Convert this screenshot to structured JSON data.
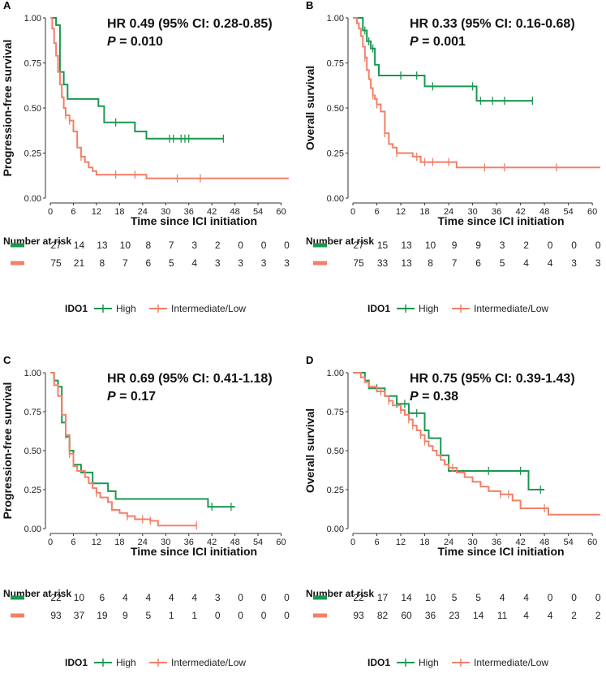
{
  "colors": {
    "high": "#1a9850",
    "low": "#f28068",
    "axis": "#333333"
  },
  "chart_data": [
    {
      "type": "line",
      "panel": "A",
      "ylabel": "Progression-free survival",
      "xlabel": "Time since ICI initiation",
      "xlim": [
        0,
        62
      ],
      "ylim": [
        0,
        1
      ],
      "xticks": [
        0,
        6,
        12,
        18,
        24,
        30,
        36,
        42,
        48,
        54,
        60
      ],
      "yticks": [
        "0.00",
        "0.25",
        "0.50",
        "0.75",
        "1.00"
      ],
      "hr_text": "HR 0.49 (95% CI: 0.28-0.85)",
      "p_letter": "P",
      "p_value": " = 0.010",
      "risk_title": "Number at risk",
      "series": [
        {
          "name": "High",
          "color": "#1a9850",
          "steps": [
            [
              0,
              1.0
            ],
            [
              1.5,
              0.96
            ],
            [
              2.5,
              0.7
            ],
            [
              3.5,
              0.63
            ],
            [
              4.5,
              0.55
            ],
            [
              11,
              0.55
            ],
            [
              12.5,
              0.51
            ],
            [
              14,
              0.42
            ],
            [
              20,
              0.42
            ],
            [
              22,
              0.37
            ],
            [
              25,
              0.33
            ],
            [
              45,
              0.33
            ]
          ],
          "censors": [
            [
              17,
              0.42
            ],
            [
              31,
              0.33
            ],
            [
              32,
              0.33
            ],
            [
              34,
              0.33
            ],
            [
              35,
              0.33
            ],
            [
              36,
              0.33
            ],
            [
              45,
              0.33
            ]
          ],
          "risk": [
            27,
            14,
            13,
            10,
            8,
            7,
            3,
            2,
            0,
            0,
            0
          ]
        },
        {
          "name": "Intermediate/Low",
          "color": "#f28068",
          "steps": [
            [
              0,
              1.0
            ],
            [
              0.5,
              0.94
            ],
            [
              1,
              0.86
            ],
            [
              1.5,
              0.79
            ],
            [
              2,
              0.7
            ],
            [
              2.5,
              0.63
            ],
            [
              3,
              0.56
            ],
            [
              3.5,
              0.5
            ],
            [
              4,
              0.46
            ],
            [
              5,
              0.43
            ],
            [
              6,
              0.37
            ],
            [
              7,
              0.28
            ],
            [
              8,
              0.23
            ],
            [
              9,
              0.2
            ],
            [
              10,
              0.17
            ],
            [
              11,
              0.15
            ],
            [
              12,
              0.13
            ],
            [
              25,
              0.11
            ],
            [
              62,
              0.11
            ]
          ],
          "censors": [
            [
              4,
              0.46
            ],
            [
              5,
              0.43
            ],
            [
              8,
              0.23
            ],
            [
              17,
              0.13
            ],
            [
              22,
              0.13
            ],
            [
              33,
              0.11
            ],
            [
              39,
              0.11
            ]
          ],
          "risk": [
            75,
            21,
            8,
            7,
            6,
            5,
            4,
            3,
            3,
            3,
            3
          ]
        }
      ]
    },
    {
      "type": "line",
      "panel": "B",
      "ylabel": "Overall survival",
      "xlabel": "Time since ICI initiation",
      "xlim": [
        0,
        62
      ],
      "ylim": [
        0,
        1
      ],
      "xticks": [
        0,
        6,
        12,
        18,
        24,
        30,
        36,
        42,
        48,
        54,
        60
      ],
      "yticks": [
        "0.00",
        "0.25",
        "0.50",
        "0.75",
        "1.00"
      ],
      "hr_text": "HR 0.33 (95% CI: 0.16-0.68)",
      "p_letter": "P",
      "p_value": " = 0.001",
      "risk_title": "Number at risk",
      "series": [
        {
          "name": "High",
          "color": "#1a9850",
          "steps": [
            [
              0,
              1.0
            ],
            [
              2.5,
              0.93
            ],
            [
              3.5,
              0.87
            ],
            [
              4.5,
              0.83
            ],
            [
              5.5,
              0.74
            ],
            [
              6.5,
              0.68
            ],
            [
              17,
              0.68
            ],
            [
              18,
              0.62
            ],
            [
              30,
              0.62
            ],
            [
              31,
              0.54
            ],
            [
              45,
              0.54
            ]
          ],
          "censors": [
            [
              3,
              0.93
            ],
            [
              4,
              0.87
            ],
            [
              5,
              0.83
            ],
            [
              12,
              0.68
            ],
            [
              16,
              0.68
            ],
            [
              20,
              0.62
            ],
            [
              30,
              0.62
            ],
            [
              32,
              0.54
            ],
            [
              35,
              0.54
            ],
            [
              38,
              0.54
            ],
            [
              45,
              0.54
            ]
          ],
          "risk": [
            27,
            15,
            13,
            10,
            9,
            9,
            3,
            2,
            0,
            0,
            0
          ]
        },
        {
          "name": "Intermediate/Low",
          "color": "#f28068",
          "steps": [
            [
              0,
              1.0
            ],
            [
              1,
              0.97
            ],
            [
              1.5,
              0.94
            ],
            [
              2,
              0.9
            ],
            [
              2.5,
              0.84
            ],
            [
              3,
              0.78
            ],
            [
              3.5,
              0.71
            ],
            [
              4,
              0.66
            ],
            [
              4.5,
              0.61
            ],
            [
              5,
              0.57
            ],
            [
              5.5,
              0.55
            ],
            [
              6,
              0.52
            ],
            [
              7,
              0.48
            ],
            [
              8,
              0.36
            ],
            [
              9,
              0.3
            ],
            [
              10,
              0.28
            ],
            [
              11,
              0.25
            ],
            [
              15,
              0.23
            ],
            [
              17,
              0.2
            ],
            [
              26,
              0.17
            ],
            [
              62,
              0.17
            ]
          ],
          "censors": [
            [
              3,
              0.78
            ],
            [
              5,
              0.57
            ],
            [
              6,
              0.52
            ],
            [
              8,
              0.36
            ],
            [
              11,
              0.25
            ],
            [
              16,
              0.23
            ],
            [
              18,
              0.2
            ],
            [
              20,
              0.2
            ],
            [
              24,
              0.2
            ],
            [
              33,
              0.17
            ],
            [
              38,
              0.17
            ],
            [
              51,
              0.17
            ]
          ],
          "risk": [
            75,
            33,
            13,
            8,
            7,
            6,
            5,
            4,
            4,
            3,
            3
          ]
        }
      ]
    },
    {
      "type": "line",
      "panel": "C",
      "ylabel": "Progression-free survival",
      "xlabel": "Time since ICI initiation",
      "xlim": [
        0,
        62
      ],
      "ylim": [
        0,
        1
      ],
      "xticks": [
        0,
        6,
        12,
        18,
        24,
        30,
        36,
        42,
        48,
        54,
        60
      ],
      "yticks": [
        "0.00",
        "0.25",
        "0.50",
        "0.75",
        "1.00"
      ],
      "hr_text": "HR 0.69 (95% CI: 0.41-1.18)",
      "p_letter": "P",
      "p_value": " = 0.17",
      "risk_title": "Number at risk",
      "series": [
        {
          "name": "High",
          "color": "#1a9850",
          "steps": [
            [
              0,
              1.0
            ],
            [
              1,
              0.95
            ],
            [
              2,
              0.91
            ],
            [
              3,
              0.68
            ],
            [
              4,
              0.59
            ],
            [
              5,
              0.5
            ],
            [
              6,
              0.41
            ],
            [
              8,
              0.36
            ],
            [
              11,
              0.29
            ],
            [
              15,
              0.24
            ],
            [
              17,
              0.19
            ],
            [
              40,
              0.19
            ],
            [
              41,
              0.14
            ],
            [
              48,
              0.14
            ]
          ],
          "censors": [
            [
              2,
              0.91
            ],
            [
              42,
              0.14
            ],
            [
              47,
              0.14
            ]
          ],
          "risk": [
            22,
            10,
            6,
            4,
            4,
            4,
            4,
            3,
            0,
            0,
            0
          ]
        },
        {
          "name": "Intermediate/Low",
          "color": "#f28068",
          "steps": [
            [
              0,
              1.0
            ],
            [
              1,
              0.92
            ],
            [
              2,
              0.85
            ],
            [
              3,
              0.73
            ],
            [
              4,
              0.6
            ],
            [
              5,
              0.48
            ],
            [
              6,
              0.4
            ],
            [
              7,
              0.37
            ],
            [
              9,
              0.33
            ],
            [
              10,
              0.29
            ],
            [
              11,
              0.26
            ],
            [
              12,
              0.23
            ],
            [
              13,
              0.2
            ],
            [
              15,
              0.17
            ],
            [
              16,
              0.12
            ],
            [
              18,
              0.1
            ],
            [
              20,
              0.08
            ],
            [
              22,
              0.06
            ],
            [
              26,
              0.05
            ],
            [
              28,
              0.02
            ],
            [
              38,
              0.02
            ]
          ],
          "censors": [
            [
              4,
              0.6
            ],
            [
              5,
              0.48
            ],
            [
              12,
              0.23
            ],
            [
              20,
              0.08
            ],
            [
              24,
              0.06
            ],
            [
              26,
              0.05
            ],
            [
              38,
              0.02
            ]
          ],
          "risk": [
            93,
            37,
            19,
            9,
            5,
            1,
            1,
            0,
            0,
            0,
            0
          ]
        }
      ]
    },
    {
      "type": "line",
      "panel": "D",
      "ylabel": "Overall survival",
      "xlabel": "Time since ICI initiation",
      "xlim": [
        0,
        62
      ],
      "ylim": [
        0,
        1
      ],
      "xticks": [
        0,
        6,
        12,
        18,
        24,
        30,
        36,
        42,
        48,
        54,
        60
      ],
      "yticks": [
        "0.00",
        "0.25",
        "0.50",
        "0.75",
        "1.00"
      ],
      "hr_text": "HR 0.75 (95% CI: 0.39-1.43)",
      "p_letter": "P",
      "p_value": " = 0.38",
      "risk_title": "Number at risk",
      "series": [
        {
          "name": "High",
          "color": "#1a9850",
          "steps": [
            [
              0,
              1.0
            ],
            [
              3,
              0.95
            ],
            [
              4,
              0.9
            ],
            [
              8,
              0.85
            ],
            [
              11,
              0.8
            ],
            [
              14,
              0.74
            ],
            [
              18,
              0.63
            ],
            [
              19,
              0.58
            ],
            [
              22,
              0.47
            ],
            [
              24,
              0.37
            ],
            [
              43,
              0.37
            ],
            [
              44,
              0.25
            ],
            [
              48,
              0.25
            ]
          ],
          "censors": [
            [
              6,
              0.9
            ],
            [
              11,
              0.8
            ],
            [
              13,
              0.8
            ],
            [
              16,
              0.74
            ],
            [
              34,
              0.37
            ],
            [
              42,
              0.37
            ],
            [
              47,
              0.25
            ]
          ],
          "risk": [
            22,
            17,
            14,
            10,
            5,
            5,
            4,
            4,
            0,
            0,
            0
          ]
        },
        {
          "name": "Intermediate/Low",
          "color": "#f28068",
          "steps": [
            [
              0,
              1.0
            ],
            [
              2,
              0.97
            ],
            [
              3,
              0.94
            ],
            [
              4,
              0.91
            ],
            [
              6,
              0.88
            ],
            [
              8,
              0.85
            ],
            [
              9,
              0.82
            ],
            [
              10,
              0.79
            ],
            [
              12,
              0.76
            ],
            [
              13,
              0.73
            ],
            [
              14,
              0.7
            ],
            [
              15,
              0.66
            ],
            [
              16,
              0.63
            ],
            [
              17,
              0.6
            ],
            [
              18,
              0.56
            ],
            [
              19,
              0.53
            ],
            [
              20,
              0.5
            ],
            [
              21,
              0.47
            ],
            [
              22,
              0.44
            ],
            [
              23,
              0.41
            ],
            [
              24,
              0.39
            ],
            [
              26,
              0.36
            ],
            [
              28,
              0.33
            ],
            [
              30,
              0.3
            ],
            [
              32,
              0.27
            ],
            [
              34,
              0.24
            ],
            [
              37,
              0.22
            ],
            [
              40,
              0.18
            ],
            [
              42,
              0.13
            ],
            [
              48,
              0.13
            ],
            [
              49,
              0.09
            ],
            [
              62,
              0.09
            ]
          ],
          "censors": [
            [
              7,
              0.88
            ],
            [
              9,
              0.82
            ],
            [
              12,
              0.76
            ],
            [
              14,
              0.7
            ],
            [
              15,
              0.66
            ],
            [
              17,
              0.6
            ],
            [
              18,
              0.56
            ],
            [
              25,
              0.39
            ],
            [
              37,
              0.22
            ],
            [
              39,
              0.22
            ],
            [
              48,
              0.13
            ]
          ],
          "risk": [
            93,
            82,
            60,
            36,
            23,
            14,
            11,
            4,
            4,
            2,
            2
          ]
        }
      ]
    }
  ],
  "legend": {
    "title": "IDO1",
    "items": [
      "High",
      "Intermediate/Low"
    ]
  }
}
